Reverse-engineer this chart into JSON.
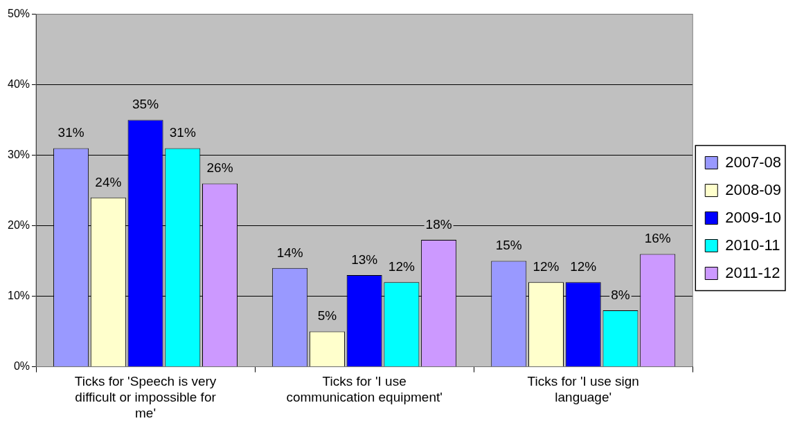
{
  "chart_data": {
    "type": "bar",
    "categories": [
      "Ticks for 'Speech is very difficult or impossible for me'",
      "Ticks for 'I use communication equipment'",
      "Ticks for 'I use sign language'"
    ],
    "series": [
      {
        "name": "2007-08",
        "color": "#9999ff",
        "values": [
          31,
          14,
          15
        ],
        "value_labels": [
          "31%",
          "14%",
          "15%"
        ]
      },
      {
        "name": "2008-09",
        "color": "#ffffcc",
        "values": [
          24,
          5,
          12
        ],
        "value_labels": [
          "24%",
          "5%",
          "12%"
        ]
      },
      {
        "name": "2009-10",
        "color": "#0000ff",
        "values": [
          35,
          13,
          12
        ],
        "value_labels": [
          "35%",
          "13%",
          "12%"
        ]
      },
      {
        "name": "2010-11",
        "color": "#00ffff",
        "values": [
          31,
          12,
          8
        ],
        "value_labels": [
          "31%",
          "12%",
          "8%"
        ]
      },
      {
        "name": "2011-12",
        "color": "#cc99ff",
        "values": [
          26,
          18,
          16
        ],
        "value_labels": [
          "26%",
          "18%",
          "16%"
        ]
      }
    ],
    "ylim": [
      0,
      50
    ],
    "yticks": [
      {
        "value": 0,
        "label": "0%"
      },
      {
        "value": 10,
        "label": "10%"
      },
      {
        "value": 20,
        "label": "20%"
      },
      {
        "value": 30,
        "label": "30%"
      },
      {
        "value": 40,
        "label": "40%"
      },
      {
        "value": 50,
        "label": "50%"
      }
    ],
    "grid": "y",
    "legend": "right"
  }
}
